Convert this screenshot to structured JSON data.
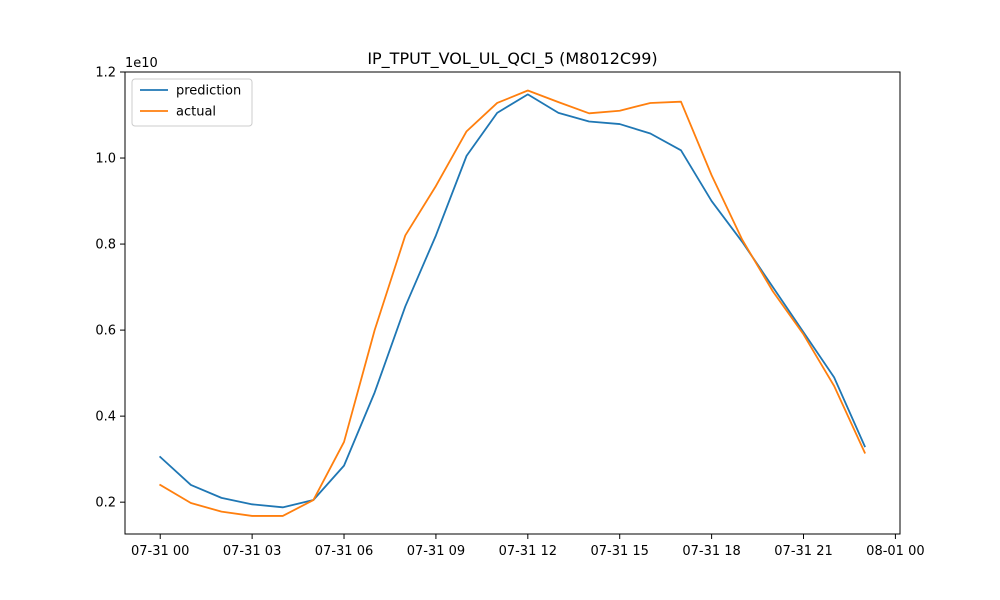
{
  "chart_data": {
    "type": "line",
    "title": "IP_TPUT_VOL_UL_QCI_5 (M8012C99)",
    "xlabel": "",
    "ylabel": "",
    "y_multiplier_label": "1e10",
    "y_scale": 10000000000,
    "x": [
      "2023-07-31 00:00",
      "2023-07-31 01:00",
      "2023-07-31 02:00",
      "2023-07-31 03:00",
      "2023-07-31 04:00",
      "2023-07-31 05:00",
      "2023-07-31 06:00",
      "2023-07-31 07:00",
      "2023-07-31 08:00",
      "2023-07-31 09:00",
      "2023-07-31 10:00",
      "2023-07-31 11:00",
      "2023-07-31 12:00",
      "2023-07-31 13:00",
      "2023-07-31 14:00",
      "2023-07-31 15:00",
      "2023-07-31 16:00",
      "2023-07-31 17:00",
      "2023-07-31 18:00",
      "2023-07-31 19:00",
      "2023-07-31 20:00",
      "2023-07-31 21:00",
      "2023-07-31 22:00",
      "2023-07-31 23:00"
    ],
    "series": [
      {
        "name": "prediction",
        "color": "#1f77b4",
        "values": [
          0.305,
          0.24,
          0.21,
          0.195,
          0.188,
          0.205,
          0.285,
          0.455,
          0.655,
          0.82,
          1.005,
          1.105,
          1.148,
          1.105,
          1.085,
          1.079,
          1.057,
          1.018,
          0.9,
          0.805,
          0.7,
          0.595,
          0.49,
          0.33
        ]
      },
      {
        "name": "actual",
        "color": "#ff7f0e",
        "values": [
          0.24,
          0.198,
          0.178,
          0.168,
          0.168,
          0.205,
          0.34,
          0.6,
          0.82,
          0.935,
          1.062,
          1.128,
          1.157,
          1.13,
          1.104,
          1.11,
          1.128,
          1.131,
          0.96,
          0.81,
          0.69,
          0.59,
          0.47,
          0.315
        ]
      }
    ],
    "x_ticks": [
      "07-31 00",
      "07-31 03",
      "07-31 06",
      "07-31 09",
      "07-31 12",
      "07-31 15",
      "07-31 18",
      "07-31 21",
      "08-01 00"
    ],
    "x_tick_hours": [
      0,
      3,
      6,
      9,
      12,
      15,
      18,
      21,
      24
    ],
    "y_ticks": [
      "0.2",
      "0.4",
      "0.6",
      "0.8",
      "1.0",
      "1.2"
    ],
    "y_tick_values": [
      0.2,
      0.4,
      0.6,
      0.8,
      1.0,
      1.2
    ],
    "xlim_hours": [
      -1.15,
      24.15
    ],
    "ylim": [
      0.126,
      1.2
    ],
    "grid": false,
    "legend_position": "top-left"
  }
}
